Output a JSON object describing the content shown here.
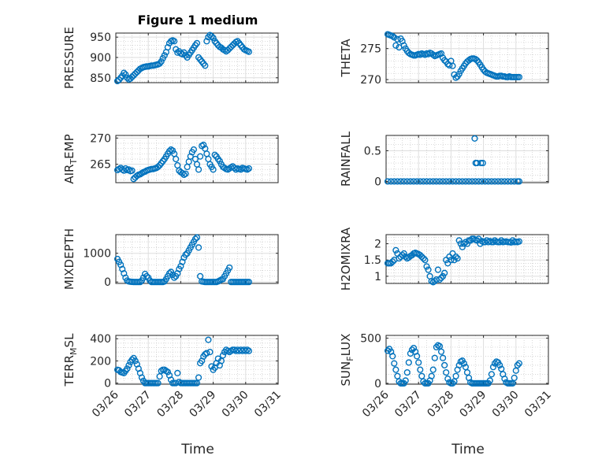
{
  "figure": {
    "title": "Figure 1 medium",
    "x_label": "Time",
    "marker_color": "#0072BD"
  },
  "chart_data": [
    {
      "type": "scatter",
      "ylabel": "PRESSURE",
      "ylabel_sub_pos": -1,
      "ylabel_sub_len": 0,
      "xlim": [
        0,
        5
      ],
      "ylim": [
        838,
        960
      ],
      "yticks": [
        850,
        900,
        950
      ],
      "xticklabels": [],
      "x": [
        0.05,
        0.1,
        0.15,
        0.2,
        0.25,
        0.3,
        0.35,
        0.4,
        0.45,
        0.5,
        0.55,
        0.6,
        0.65,
        0.7,
        0.75,
        0.8,
        0.85,
        0.9,
        0.95,
        1.0,
        1.05,
        1.1,
        1.15,
        1.2,
        1.25,
        1.3,
        1.35,
        1.4,
        1.45,
        1.5,
        1.55,
        1.6,
        1.65,
        1.7,
        1.75,
        1.8,
        1.85,
        1.9,
        1.95,
        2.0,
        2.05,
        2.1,
        2.15,
        2.2,
        2.25,
        2.3,
        2.35,
        2.4,
        2.45,
        2.5,
        2.55,
        2.6,
        2.65,
        2.7,
        2.75,
        2.8,
        2.85,
        2.9,
        2.95,
        3.0,
        3.05,
        3.1,
        3.15,
        3.2,
        3.25,
        3.3,
        3.35,
        3.4,
        3.45,
        3.5,
        3.55,
        3.6,
        3.65,
        3.7,
        3.75,
        3.8,
        3.85,
        3.9,
        3.95,
        4.0,
        4.05,
        4.1
      ],
      "values": [
        842,
        845,
        850,
        855,
        862,
        858,
        850,
        846,
        848,
        852,
        856,
        860,
        864,
        868,
        872,
        874,
        876,
        877,
        878,
        878,
        879,
        880,
        880,
        881,
        882,
        883,
        885,
        890,
        898,
        905,
        913,
        925,
        935,
        940,
        942,
        940,
        920,
        912,
        915,
        910,
        908,
        912,
        905,
        900,
        906,
        912,
        918,
        924,
        930,
        935,
        900,
        895,
        890,
        885,
        880,
        940,
        950,
        955,
        952,
        948,
        940,
        935,
        930,
        926,
        924,
        920,
        918,
        915,
        918,
        922,
        926,
        930,
        934,
        938,
        940,
        935,
        930,
        925,
        920,
        918,
        916,
        914
      ]
    },
    {
      "type": "scatter",
      "ylabel": "THETA",
      "ylabel_sub_pos": -1,
      "ylabel_sub_len": 0,
      "xlim": [
        0,
        5
      ],
      "ylim": [
        269.5,
        277.5
      ],
      "yticks": [
        270,
        275
      ],
      "xticklabels": [],
      "x": [
        0.05,
        0.1,
        0.15,
        0.2,
        0.25,
        0.3,
        0.35,
        0.4,
        0.45,
        0.5,
        0.55,
        0.6,
        0.65,
        0.7,
        0.75,
        0.8,
        0.85,
        0.9,
        0.95,
        1.0,
        1.05,
        1.1,
        1.15,
        1.2,
        1.25,
        1.3,
        1.35,
        1.4,
        1.45,
        1.5,
        1.55,
        1.6,
        1.65,
        1.7,
        1.75,
        1.8,
        1.85,
        1.9,
        1.95,
        2.0,
        2.05,
        2.1,
        2.15,
        2.2,
        2.25,
        2.3,
        2.35,
        2.4,
        2.45,
        2.5,
        2.55,
        2.6,
        2.65,
        2.7,
        2.75,
        2.8,
        2.85,
        2.9,
        2.95,
        3.0,
        3.05,
        3.1,
        3.15,
        3.2,
        3.25,
        3.3,
        3.35,
        3.4,
        3.45,
        3.5,
        3.55,
        3.6,
        3.65,
        3.7,
        3.75,
        3.8,
        3.85,
        3.9,
        3.95,
        4.0,
        4.05,
        4.1
      ],
      "values": [
        277.3,
        277.2,
        277.1,
        277.0,
        276.8,
        275.5,
        276.5,
        275.2,
        276.6,
        276.2,
        275.5,
        275.0,
        274.6,
        274.3,
        274.1,
        274.0,
        273.9,
        273.9,
        274.0,
        274.1,
        274.0,
        274.2,
        274.1,
        274.0,
        274.2,
        274.1,
        274.3,
        274.2,
        274.0,
        273.8,
        273.9,
        274.0,
        274.1,
        274.2,
        273.5,
        273.1,
        272.9,
        272.5,
        272.3,
        273.0,
        272.2,
        270.8,
        270.3,
        270.5,
        270.9,
        271.4,
        271.8,
        272.2,
        272.6,
        272.9,
        273.1,
        273.3,
        273.4,
        273.4,
        273.3,
        273.1,
        272.8,
        272.4,
        272.0,
        271.6,
        271.3,
        271.1,
        271.0,
        270.9,
        270.8,
        270.7,
        270.6,
        270.5,
        270.5,
        270.6,
        270.6,
        270.5,
        270.5,
        270.4,
        270.4,
        270.5,
        270.4,
        270.4,
        270.4,
        270.4,
        270.4,
        270.4
      ]
    },
    {
      "type": "scatter",
      "ylabel": "AIRTEMP",
      "ylabel_sub_pos": 3,
      "ylabel_sub_len": 1,
      "xlim": [
        0,
        5
      ],
      "ylim": [
        261.5,
        270.5
      ],
      "yticks": [
        265,
        270
      ],
      "xticklabels": [],
      "x": [
        0.05,
        0.1,
        0.15,
        0.2,
        0.25,
        0.3,
        0.35,
        0.4,
        0.45,
        0.5,
        0.55,
        0.6,
        0.65,
        0.7,
        0.75,
        0.8,
        0.85,
        0.9,
        0.95,
        1.0,
        1.05,
        1.1,
        1.15,
        1.2,
        1.25,
        1.3,
        1.35,
        1.4,
        1.45,
        1.5,
        1.55,
        1.6,
        1.65,
        1.7,
        1.75,
        1.8,
        1.85,
        1.9,
        1.95,
        2.0,
        2.05,
        2.1,
        2.15,
        2.2,
        2.25,
        2.3,
        2.35,
        2.4,
        2.45,
        2.5,
        2.55,
        2.6,
        2.65,
        2.7,
        2.75,
        2.8,
        2.85,
        2.9,
        2.95,
        3.0,
        3.05,
        3.1,
        3.15,
        3.2,
        3.25,
        3.3,
        3.35,
        3.4,
        3.45,
        3.5,
        3.55,
        3.6,
        3.65,
        3.7,
        3.75,
        3.8,
        3.85,
        3.9,
        3.95,
        4.0,
        4.05,
        4.1
      ],
      "values": [
        263.9,
        264.1,
        264.3,
        264.0,
        263.8,
        264.2,
        263.9,
        264.0,
        263.7,
        263.8,
        262.2,
        262.5,
        262.8,
        263.0,
        263.1,
        263.3,
        263.5,
        263.6,
        263.8,
        263.9,
        264.0,
        264.1,
        264.1,
        264.2,
        264.3,
        264.5,
        264.8,
        265.2,
        265.6,
        266.0,
        266.5,
        267.0,
        267.5,
        267.8,
        267.6,
        267.0,
        266.0,
        264.8,
        263.8,
        263.5,
        263.3,
        263.0,
        263.2,
        264.5,
        265.5,
        266.5,
        267.3,
        267.8,
        266.0,
        265.0,
        264.0,
        266.5,
        268.5,
        268.7,
        268.0,
        267.0,
        266.0,
        265.0,
        264.5,
        264.0,
        266.8,
        266.5,
        266.0,
        265.6,
        265.0,
        264.5,
        264.3,
        264.1,
        264.0,
        264.2,
        264.4,
        264.6,
        264.3,
        264.0,
        264.2,
        264.1,
        264.0,
        264.3,
        264.2,
        264.1,
        264.0,
        264.2
      ]
    },
    {
      "type": "scatter",
      "ylabel": "RAINFALL",
      "ylabel_sub_pos": -1,
      "ylabel_sub_len": 0,
      "xlim": [
        0,
        5
      ],
      "ylim": [
        -0.02,
        0.75
      ],
      "yticks": [
        0,
        0.5
      ],
      "xticklabels": [],
      "x": [
        0.05,
        0.15,
        0.25,
        0.35,
        0.45,
        0.55,
        0.65,
        0.75,
        0.85,
        0.95,
        1.05,
        1.15,
        1.25,
        1.35,
        1.45,
        1.55,
        1.65,
        1.75,
        1.85,
        1.95,
        2.05,
        2.15,
        2.25,
        2.35,
        2.45,
        2.55,
        2.65,
        2.75,
        2.85,
        2.95,
        3.05,
        3.15,
        3.25,
        3.35,
        3.45,
        3.55,
        3.65,
        3.75,
        3.85,
        3.95,
        4.05,
        4.1,
        2.73,
        2.76,
        2.8,
        2.92,
        2.98
      ],
      "values": [
        0,
        0,
        0,
        0,
        0,
        0,
        0,
        0,
        0,
        0,
        0,
        0,
        0,
        0,
        0,
        0,
        0,
        0,
        0,
        0,
        0,
        0,
        0,
        0,
        0,
        0,
        0,
        0,
        0,
        0,
        0,
        0,
        0,
        0,
        0,
        0,
        0,
        0,
        0,
        0,
        0,
        0,
        0.7,
        0.3,
        0.3,
        0.3,
        0.3
      ]
    },
    {
      "type": "scatter",
      "ylabel": "MIXDEPTH",
      "ylabel_sub_pos": -1,
      "ylabel_sub_len": 0,
      "xlim": [
        0,
        5
      ],
      "ylim": [
        -50,
        1650
      ],
      "yticks": [
        0,
        1000
      ],
      "xticklabels": [],
      "x": [
        0.05,
        0.1,
        0.15,
        0.2,
        0.25,
        0.3,
        0.35,
        0.4,
        0.45,
        0.5,
        0.55,
        0.6,
        0.65,
        0.7,
        0.75,
        0.8,
        0.85,
        0.9,
        0.95,
        1.0,
        1.05,
        1.1,
        1.15,
        1.2,
        1.25,
        1.3,
        1.35,
        1.4,
        1.45,
        1.5,
        1.55,
        1.6,
        1.65,
        1.7,
        1.75,
        1.8,
        1.85,
        1.9,
        1.95,
        2.0,
        2.05,
        2.1,
        2.15,
        2.2,
        2.25,
        2.3,
        2.35,
        2.4,
        2.45,
        2.5,
        2.55,
        2.6,
        2.65,
        2.7,
        2.75,
        2.8,
        2.85,
        2.9,
        2.95,
        3.0,
        3.05,
        3.1,
        3.15,
        3.2,
        3.25,
        3.3,
        3.35,
        3.4,
        3.45,
        3.5,
        3.55,
        3.6,
        3.65,
        3.7,
        3.75,
        3.8,
        3.85,
        3.9,
        3.95,
        4.0,
        4.05,
        4.1
      ],
      "values": [
        800,
        700,
        600,
        450,
        300,
        150,
        50,
        20,
        10,
        5,
        0,
        0,
        0,
        0,
        0,
        50,
        150,
        280,
        200,
        150,
        50,
        0,
        0,
        0,
        0,
        0,
        0,
        0,
        0,
        20,
        100,
        200,
        300,
        350,
        250,
        150,
        200,
        300,
        450,
        550,
        700,
        850,
        950,
        1000,
        1100,
        1200,
        1300,
        1400,
        1500,
        1550,
        1200,
        200,
        20,
        10,
        0,
        0,
        0,
        0,
        0,
        0,
        0,
        0,
        20,
        50,
        80,
        100,
        200,
        300,
        400,
        500,
        0,
        0,
        0,
        0,
        0,
        0,
        0,
        0,
        0,
        0,
        0,
        0
      ]
    },
    {
      "type": "scatter",
      "ylabel": "H2OMIXRA",
      "ylabel_sub_pos": -1,
      "ylabel_sub_len": 0,
      "xlim": [
        0,
        5
      ],
      "ylim": [
        0.78,
        2.28
      ],
      "yticks": [
        1,
        1.5,
        2
      ],
      "xticklabels": [],
      "x": [
        0.05,
        0.1,
        0.15,
        0.2,
        0.25,
        0.3,
        0.35,
        0.4,
        0.45,
        0.5,
        0.55,
        0.6,
        0.65,
        0.7,
        0.75,
        0.8,
        0.85,
        0.9,
        0.95,
        1.0,
        1.05,
        1.1,
        1.15,
        1.2,
        1.25,
        1.3,
        1.35,
        1.4,
        1.45,
        1.5,
        1.55,
        1.6,
        1.65,
        1.7,
        1.75,
        1.8,
        1.85,
        1.9,
        1.95,
        2.0,
        2.05,
        2.1,
        2.15,
        2.2,
        2.25,
        2.3,
        2.35,
        2.4,
        2.45,
        2.5,
        2.55,
        2.6,
        2.65,
        2.7,
        2.75,
        2.8,
        2.85,
        2.9,
        2.95,
        3.0,
        3.05,
        3.1,
        3.15,
        3.2,
        3.25,
        3.3,
        3.35,
        3.4,
        3.45,
        3.5,
        3.55,
        3.6,
        3.65,
        3.7,
        3.75,
        3.8,
        3.85,
        3.9,
        3.95,
        4.0,
        4.05,
        4.1
      ],
      "values": [
        1.4,
        1.4,
        1.4,
        1.45,
        1.5,
        1.8,
        1.7,
        1.55,
        1.6,
        1.65,
        1.7,
        1.6,
        1.55,
        1.58,
        1.62,
        1.65,
        1.7,
        1.72,
        1.7,
        1.68,
        1.65,
        1.6,
        1.55,
        1.5,
        1.3,
        1.2,
        1.0,
        0.85,
        0.82,
        0.85,
        0.9,
        1.2,
        0.9,
        0.95,
        1.0,
        1.1,
        1.5,
        1.4,
        1.6,
        1.5,
        1.7,
        1.5,
        1.6,
        1.55,
        2.1,
        2.0,
        1.9,
        2.0,
        2.05,
        2.0,
        2.1,
        2.1,
        2.15,
        2.15,
        2.12,
        2.1,
        2.15,
        2.0,
        2.08,
        2.05,
        2.05,
        2.1,
        2.05,
        2.08,
        2.05,
        2.05,
        2.1,
        2.06,
        2.05,
        2.05,
        2.1,
        2.05,
        2.06,
        2.07,
        2.05,
        2.05,
        2.04,
        2.1,
        2.05,
        2.06,
        2.05,
        2.07
      ]
    },
    {
      "type": "scatter",
      "ylabel": "TERRMSL",
      "ylabel_sub_pos": 4,
      "ylabel_sub_len": 1,
      "xlim": [
        0,
        5
      ],
      "ylim": [
        -10,
        430
      ],
      "yticks": [
        0,
        200,
        400
      ],
      "xticklabels": [
        "03/26",
        "03/27",
        "03/28",
        "03/29",
        "03/30",
        "03/31"
      ],
      "x": [
        0.05,
        0.1,
        0.15,
        0.2,
        0.25,
        0.3,
        0.35,
        0.4,
        0.45,
        0.5,
        0.55,
        0.6,
        0.65,
        0.7,
        0.75,
        0.8,
        0.85,
        0.9,
        0.95,
        1.0,
        1.05,
        1.1,
        1.15,
        1.2,
        1.25,
        1.3,
        1.35,
        1.4,
        1.45,
        1.5,
        1.55,
        1.6,
        1.65,
        1.7,
        1.75,
        1.8,
        1.85,
        1.9,
        1.95,
        2.0,
        2.05,
        2.1,
        2.15,
        2.2,
        2.25,
        2.3,
        2.35,
        2.4,
        2.45,
        2.5,
        2.55,
        2.6,
        2.65,
        2.7,
        2.75,
        2.8,
        2.85,
        2.9,
        2.95,
        3.0,
        3.05,
        3.1,
        3.15,
        3.2,
        3.25,
        3.3,
        3.35,
        3.4,
        3.45,
        3.5,
        3.55,
        3.6,
        3.65,
        3.7,
        3.75,
        3.8,
        3.85,
        3.9,
        3.95,
        4.0,
        4.05,
        4.1
      ],
      "values": [
        120,
        115,
        100,
        95,
        90,
        110,
        130,
        160,
        190,
        210,
        225,
        200,
        170,
        130,
        90,
        50,
        20,
        0,
        0,
        0,
        0,
        0,
        0,
        0,
        0,
        0,
        60,
        110,
        120,
        120,
        110,
        100,
        70,
        30,
        0,
        0,
        0,
        90,
        10,
        0,
        0,
        0,
        0,
        0,
        0,
        0,
        0,
        0,
        0,
        0,
        50,
        180,
        200,
        240,
        260,
        270,
        390,
        280,
        150,
        120,
        140,
        180,
        220,
        160,
        200,
        250,
        280,
        300,
        290,
        280,
        290,
        300,
        300,
        290,
        300,
        290,
        300,
        290,
        300,
        290,
        300,
        290
      ]
    },
    {
      "type": "scatter",
      "ylabel": "SUNFLUX",
      "ylabel_sub_pos": 3,
      "ylabel_sub_len": 1,
      "xlim": [
        0,
        5
      ],
      "ylim": [
        -10,
        530
      ],
      "yticks": [
        0,
        500
      ],
      "xticklabels": [
        "03/26",
        "03/27",
        "03/28",
        "03/29",
        "03/30",
        "03/31"
      ],
      "x": [
        0.05,
        0.1,
        0.15,
        0.2,
        0.25,
        0.3,
        0.35,
        0.4,
        0.45,
        0.5,
        0.55,
        0.6,
        0.65,
        0.7,
        0.75,
        0.8,
        0.85,
        0.9,
        0.95,
        1.0,
        1.05,
        1.1,
        1.15,
        1.2,
        1.25,
        1.3,
        1.35,
        1.4,
        1.45,
        1.5,
        1.55,
        1.6,
        1.65,
        1.7,
        1.75,
        1.8,
        1.85,
        1.9,
        1.95,
        2.0,
        2.05,
        2.1,
        2.15,
        2.2,
        2.25,
        2.3,
        2.35,
        2.4,
        2.45,
        2.5,
        2.55,
        2.6,
        2.65,
        2.7,
        2.75,
        2.8,
        2.85,
        2.9,
        2.95,
        3.0,
        3.05,
        3.1,
        3.15,
        3.2,
        3.25,
        3.3,
        3.35,
        3.4,
        3.45,
        3.5,
        3.55,
        3.6,
        3.65,
        3.7,
        3.75,
        3.8,
        3.85,
        3.9,
        3.95,
        4.0,
        4.05,
        4.1
      ],
      "values": [
        360,
        380,
        350,
        300,
        220,
        150,
        80,
        20,
        0,
        0,
        0,
        30,
        120,
        230,
        330,
        370,
        390,
        350,
        300,
        230,
        150,
        80,
        20,
        0,
        0,
        0,
        30,
        80,
        150,
        280,
        400,
        420,
        410,
        350,
        280,
        200,
        120,
        50,
        10,
        0,
        0,
        20,
        80,
        150,
        200,
        240,
        250,
        220,
        180,
        120,
        60,
        10,
        0,
        0,
        0,
        0,
        0,
        0,
        0,
        0,
        0,
        0,
        0,
        30,
        100,
        180,
        220,
        240,
        230,
        200,
        160,
        100,
        50,
        10,
        0,
        0,
        0,
        0,
        60,
        140,
        200,
        220
      ]
    }
  ]
}
